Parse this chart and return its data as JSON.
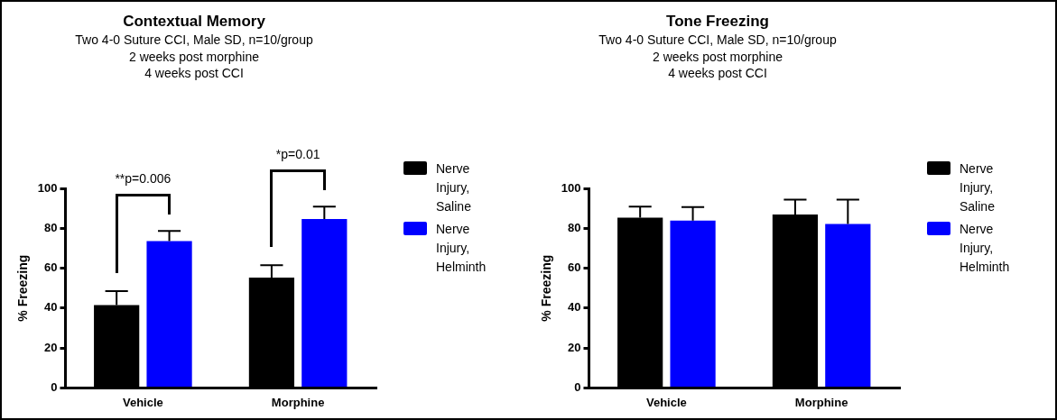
{
  "chart_data": [
    {
      "type": "bar",
      "title": "Contextual Memory",
      "subtitle": "Two 4-0 Suture CCI, Male SD, n=10/group\n2 weeks post morphine\n4 weeks post CCI",
      "ylabel": "% Freezing",
      "categories": [
        "Vehicle",
        "Morphine"
      ],
      "series": [
        {
          "name": "Nerve Injury, Saline",
          "color": "#000000",
          "values": [
            41.5,
            55.3
          ],
          "errors": [
            [
              41.5,
              48.5
            ],
            [
              55.3,
              61.5
            ]
          ]
        },
        {
          "name": "Nerve Injury, Helminth",
          "color": "#0000ff",
          "values": [
            73.6,
            84.6
          ],
          "errors": [
            [
              73.6,
              78.7
            ],
            [
              84.6,
              90.9
            ]
          ]
        }
      ],
      "ylim": [
        0,
        100
      ],
      "yticks": [
        0,
        20,
        40,
        60,
        80,
        100
      ],
      "grid": false,
      "legend": "right",
      "annotations": [
        "**p=0.006",
        "*p=0.01"
      ]
    },
    {
      "type": "bar",
      "title": "Tone Freezing",
      "subtitle": "Two 4-0 Suture CCI, Male SD, n=10/group\n2 weeks post morphine\n4 weeks post CCI",
      "ylabel": "% Freezing",
      "categories": [
        "Vehicle",
        "Morphine"
      ],
      "series": [
        {
          "name": "Nerve Injury, Saline",
          "color": "#000000",
          "values": [
            85.3,
            86.9
          ],
          "errors": [
            [
              85.3,
              90.9
            ],
            [
              86.9,
              94.3
            ]
          ]
        },
        {
          "name": "Nerve Injury, Helminth",
          "color": "#0000ff",
          "values": [
            83.8,
            82.2
          ],
          "errors": [
            [
              83.8,
              90.6
            ],
            [
              82.2,
              94.3
            ]
          ]
        }
      ],
      "ylim": [
        0,
        100
      ],
      "yticks": [
        0,
        20,
        40,
        60,
        80,
        100
      ],
      "grid": false,
      "legend": "right"
    }
  ]
}
